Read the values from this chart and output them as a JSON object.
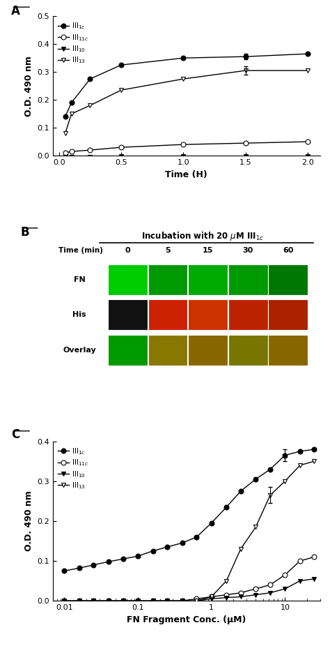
{
  "panel_A": {
    "xlabel": "Time (H)",
    "ylabel": "O.D. 490 nm",
    "ylim": [
      0,
      0.5
    ],
    "xlim": [
      -0.05,
      2.1
    ],
    "xticks": [
      0.0,
      0.5,
      1.0,
      1.5,
      2.0
    ],
    "yticks": [
      0.0,
      0.1,
      0.2,
      0.3,
      0.4,
      0.5
    ],
    "series": {
      "III_1c": {
        "x": [
          0.05,
          0.1,
          0.25,
          0.5,
          1.0,
          1.5,
          2.0
        ],
        "y": [
          0.14,
          0.19,
          0.275,
          0.325,
          0.35,
          0.355,
          0.365
        ],
        "yerr": [
          0,
          0,
          0,
          0,
          0,
          0.01,
          0
        ],
        "marker": "o",
        "filled": true,
        "label": "III$_{1c}$"
      },
      "III_11c": {
        "x": [
          0.05,
          0.1,
          0.25,
          0.5,
          1.0,
          1.5,
          2.0
        ],
        "y": [
          0.01,
          0.015,
          0.02,
          0.03,
          0.04,
          0.045,
          0.05
        ],
        "yerr": [
          0,
          0,
          0,
          0,
          0,
          0,
          0
        ],
        "marker": "o",
        "filled": false,
        "label": "III$_{11c}$"
      },
      "III_10": {
        "x": [
          0.05,
          0.1,
          0.25,
          0.5,
          1.0,
          1.5,
          2.0
        ],
        "y": [
          -0.005,
          -0.005,
          -0.005,
          -0.003,
          -0.002,
          -0.002,
          -0.002
        ],
        "yerr": [
          0,
          0,
          0,
          0,
          0,
          0,
          0
        ],
        "marker": "v",
        "filled": true,
        "label": "III$_{10}$"
      },
      "III_13": {
        "x": [
          0.05,
          0.1,
          0.25,
          0.5,
          1.0,
          1.5,
          2.0
        ],
        "y": [
          0.08,
          0.15,
          0.18,
          0.235,
          0.275,
          0.305,
          0.305
        ],
        "yerr": [
          0,
          0,
          0,
          0,
          0,
          0.015,
          0
        ],
        "marker": "v",
        "filled": false,
        "label": "III$_{13}$"
      }
    },
    "series_order": [
      "III_1c",
      "III_11c",
      "III_10",
      "III_13"
    ]
  },
  "panel_B": {
    "header": "Incubation with 20 μM III$_{1c}$",
    "time_labels": [
      "0",
      "5",
      "15",
      "30",
      "60"
    ],
    "row_labels": [
      "FN",
      "His",
      "Overlay"
    ],
    "fn_colors": [
      "#00cc00",
      "#009900",
      "#00aa00",
      "#009900",
      "#007700"
    ],
    "his_colors": [
      "#111111",
      "#cc2200",
      "#cc3300",
      "#bb2200",
      "#aa2200"
    ],
    "overlay_colors": [
      "#009900",
      "#887700",
      "#886600",
      "#777700",
      "#886600"
    ]
  },
  "panel_C": {
    "xlabel": "FN Fragment Conc. (μM)",
    "ylabel": "O.D. 490 nm",
    "ylim": [
      0,
      0.4
    ],
    "xlim": [
      0.007,
      30
    ],
    "xticks": [
      0.01,
      0.1,
      1,
      10
    ],
    "xtick_labels": [
      "0.01",
      "0.1",
      "1",
      "10"
    ],
    "yticks": [
      0.0,
      0.1,
      0.2,
      0.3,
      0.4
    ],
    "series": {
      "III_1c": {
        "x": [
          0.01,
          0.016,
          0.025,
          0.04,
          0.063,
          0.1,
          0.16,
          0.25,
          0.4,
          0.63,
          1.0,
          1.6,
          2.5,
          4.0,
          6.3,
          10.0,
          16.0,
          25.0
        ],
        "y": [
          0.075,
          0.082,
          0.09,
          0.098,
          0.105,
          0.112,
          0.125,
          0.135,
          0.145,
          0.16,
          0.195,
          0.235,
          0.275,
          0.305,
          0.33,
          0.365,
          0.375,
          0.38
        ],
        "yerr_idx": 15,
        "yerr": 0.015,
        "marker": "o",
        "filled": true,
        "label": "III$_{1c}$"
      },
      "III_11c": {
        "x": [
          0.01,
          0.016,
          0.025,
          0.04,
          0.063,
          0.1,
          0.16,
          0.25,
          0.4,
          0.63,
          1.0,
          1.6,
          2.5,
          4.0,
          6.3,
          10.0,
          16.0,
          25.0
        ],
        "y": [
          0.0,
          0.0,
          0.0,
          0.0,
          0.0,
          0.0,
          0.0,
          0.0,
          0.0,
          0.005,
          0.01,
          0.015,
          0.02,
          0.03,
          0.04,
          0.065,
          0.1,
          0.11
        ],
        "marker": "o",
        "filled": false,
        "label": "III$_{11c}$"
      },
      "III_10": {
        "x": [
          0.01,
          0.016,
          0.025,
          0.04,
          0.063,
          0.1,
          0.16,
          0.25,
          0.4,
          0.63,
          1.0,
          1.6,
          2.5,
          4.0,
          6.3,
          10.0,
          16.0,
          25.0
        ],
        "y": [
          0.0,
          0.0,
          0.0,
          0.0,
          0.0,
          0.0,
          0.0,
          0.0,
          0.0,
          0.0,
          0.005,
          0.008,
          0.01,
          0.015,
          0.02,
          0.03,
          0.05,
          0.055
        ],
        "marker": "v",
        "filled": true,
        "label": "III$_{10}$"
      },
      "III_13": {
        "x": [
          0.01,
          0.016,
          0.025,
          0.04,
          0.063,
          0.1,
          0.16,
          0.25,
          0.4,
          0.63,
          1.0,
          1.6,
          2.5,
          4.0,
          6.3,
          10.0,
          16.0,
          25.0
        ],
        "y": [
          -0.005,
          -0.005,
          -0.005,
          -0.005,
          -0.005,
          -0.005,
          -0.005,
          -0.005,
          -0.005,
          0.0,
          0.01,
          0.05,
          0.13,
          0.185,
          0.265,
          0.3,
          0.34,
          0.35
        ],
        "yerr_idx": 14,
        "yerr": 0.02,
        "marker": "v",
        "filled": false,
        "label": "III$_{13}$"
      }
    },
    "series_order": [
      "III_1c",
      "III_11c",
      "III_10",
      "III_13"
    ]
  },
  "bg_color": "#ffffff"
}
